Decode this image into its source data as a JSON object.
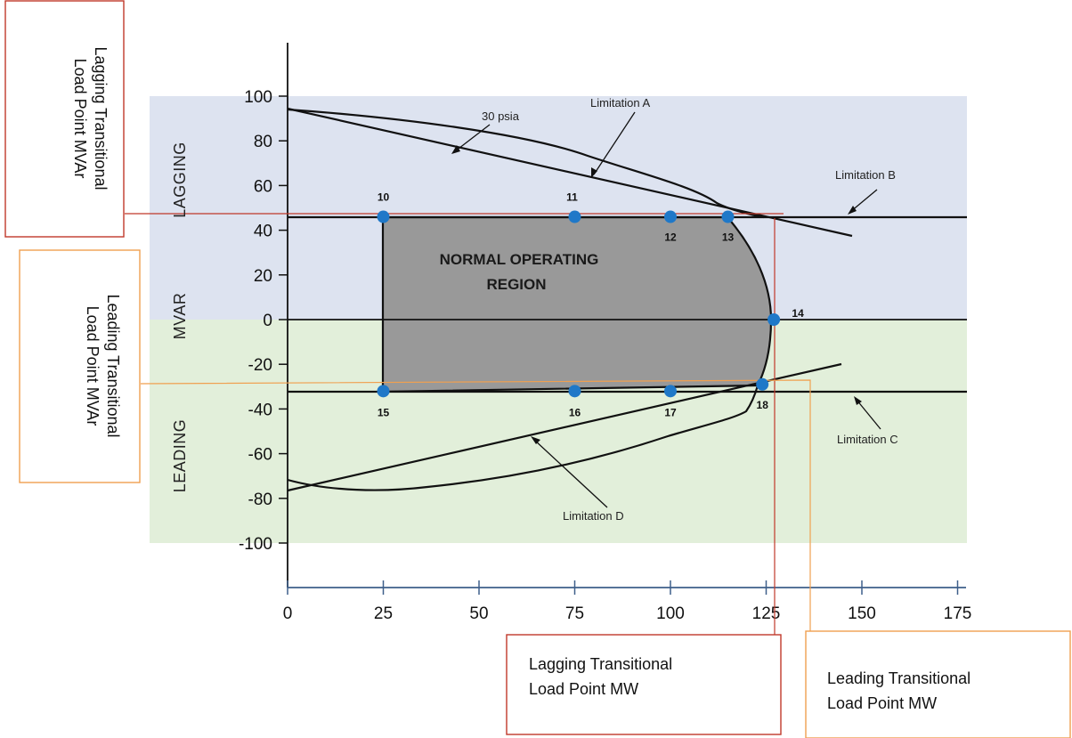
{
  "chart_data": {
    "type": "capability-curve",
    "x_ticks": [
      "0",
      "25",
      "50",
      "75",
      "100",
      "125",
      "150",
      "175"
    ],
    "y_ticks": [
      "100",
      "80",
      "60",
      "40",
      "20",
      "0",
      "-20",
      "-40",
      "-60",
      "-80",
      "-100"
    ],
    "xlim": [
      0,
      175
    ],
    "ylim": [
      -100,
      100
    ],
    "y_axis_label": "MVAR",
    "region_labels": {
      "lagging": "LAGGING",
      "leading": "LEADING"
    },
    "normal_region": {
      "line1": "NORMAL OPERATING",
      "line2": "REGION"
    },
    "points": [
      {
        "id": "10",
        "x": 25,
        "y": 46
      },
      {
        "id": "11",
        "x": 75,
        "y": 46
      },
      {
        "id": "12",
        "x": 100,
        "y": 46
      },
      {
        "id": "13",
        "x": 115,
        "y": 46
      },
      {
        "id": "14",
        "x": 127,
        "y": 0
      },
      {
        "id": "15",
        "x": 25,
        "y": -32
      },
      {
        "id": "16",
        "x": 75,
        "y": -32
      },
      {
        "id": "17",
        "x": 100,
        "y": -32
      },
      {
        "id": "18",
        "x": 124,
        "y": -29
      }
    ],
    "annotations": {
      "psia": "30 psia",
      "limitation_a": "Limitation A",
      "limitation_b": "Limitation B",
      "limitation_c": "Limitation C",
      "limitation_d": "Limitation D"
    }
  },
  "boxes": {
    "lagging_mvar": {
      "line1": "Lagging Transitional",
      "line2": "Load Point MVAr"
    },
    "leading_mvar": {
      "line1": "Leading Transitional",
      "line2": "Load Point MVAr"
    },
    "lagging_mw": {
      "line1": "Lagging Transitional",
      "line2": "Load Point MW"
    },
    "leading_mw": {
      "line1": "Leading Transitional",
      "line2": "Load Point MW"
    }
  },
  "colors": {
    "lagging_band": "#dde3f0",
    "leading_band": "#e2efda",
    "normal_region": "#999999",
    "point": "#1f78c8",
    "lagging_box": "#c0392b",
    "leading_box": "#f0a050"
  }
}
